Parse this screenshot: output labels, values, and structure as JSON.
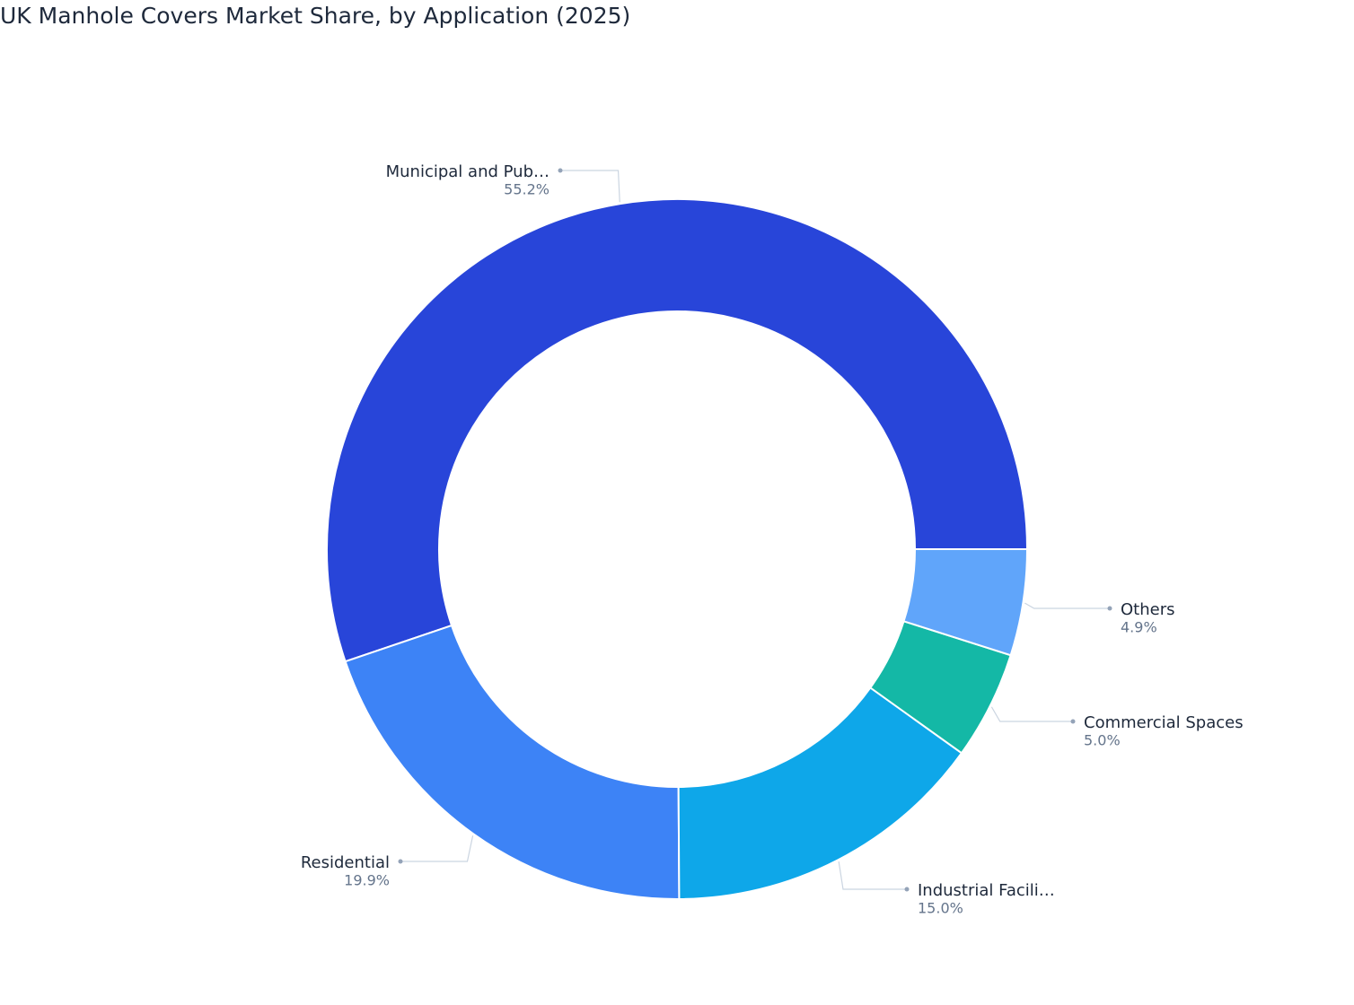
{
  "chart_data": {
    "type": "donut",
    "title": "UK Manhole Covers Market Share, by Application (2025)",
    "categories": [
      "Municipal and Pub…",
      "Residential",
      "Industrial Facili…",
      "Commercial Spaces",
      "Others"
    ],
    "values": [
      55.2,
      19.9,
      15.0,
      5.0,
      4.9
    ],
    "value_labels": [
      "55.2%",
      "19.9%",
      "15.0%",
      "5.0%",
      "4.9%"
    ],
    "colors": [
      "#2845d9",
      "#3d83f6",
      "#0ea7e9",
      "#14b8a6",
      "#60a5fa"
    ]
  }
}
